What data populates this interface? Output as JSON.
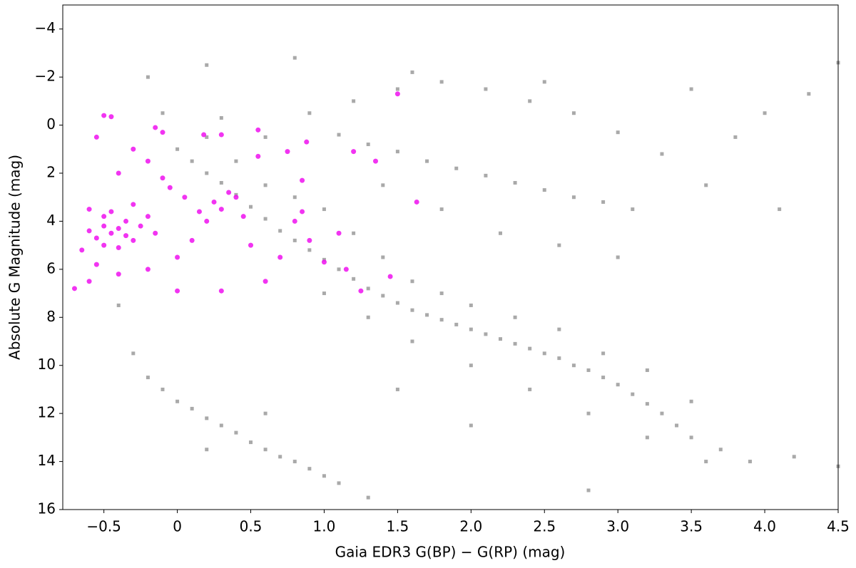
{
  "chart_data": {
    "type": "scatter",
    "xlabel": "Gaia EDR3 G(BP) − G(RP) (mag)",
    "ylabel": "Absolute G Magnitude (mag)",
    "xlim": [
      -0.78,
      4.5
    ],
    "ylim": [
      16,
      -5
    ],
    "xticks": [
      {
        "value": -0.5,
        "label": "−0.5"
      },
      0,
      0.5,
      {
        "value": 1,
        "label": "1.0"
      },
      1.5,
      {
        "value": 2,
        "label": "2.0"
      },
      2.5,
      {
        "value": 3,
        "label": "3.0"
      },
      3.5,
      {
        "value": 4,
        "label": "4.0"
      },
      4.5
    ],
    "yticks": [
      {
        "value": -4,
        "label": "−4"
      },
      {
        "value": -2,
        "label": "−2"
      },
      0,
      2,
      4,
      6,
      8,
      10,
      12,
      14,
      16
    ],
    "series": [
      {
        "color": "#a9a9a9",
        "x": [
          0.0,
          0.1,
          0.2,
          0.3,
          0.4,
          0.5,
          0.6,
          0.7,
          0.8,
          0.9,
          1.0,
          1.1,
          1.2,
          1.3,
          1.4,
          1.5,
          1.6,
          1.7,
          1.8,
          1.9,
          2.0,
          2.1,
          2.2,
          2.3,
          2.4,
          2.5,
          2.6,
          2.7,
          2.8,
          2.9,
          3.0,
          3.1,
          3.2,
          3.3,
          3.4,
          3.5,
          3.7,
          3.9,
          0.2,
          0.4,
          0.6,
          0.8,
          1.0,
          1.2,
          1.4,
          1.6,
          1.8,
          2.0,
          2.3,
          2.6,
          2.9,
          3.2,
          3.5,
          1.0,
          1.3,
          1.6,
          2.0,
          2.4,
          2.8,
          3.2,
          3.6,
          1.1,
          1.3,
          1.5,
          1.7,
          1.9,
          2.1,
          2.3,
          2.5,
          2.7,
          2.9,
          3.1,
          1.2,
          1.5,
          1.8,
          2.1,
          2.4,
          2.7,
          3.0,
          3.3,
          1.4,
          1.8,
          2.2,
          2.6,
          3.0,
          0.9,
          0.6,
          0.3,
          -0.1,
          -0.2,
          0.2,
          0.8,
          1.6,
          2.5,
          3.5,
          4.0,
          4.3,
          4.5,
          3.8,
          3.6,
          4.1,
          -0.3,
          -0.2,
          -0.1,
          0.0,
          0.1,
          0.2,
          0.3,
          0.4,
          0.5,
          0.6,
          0.7,
          0.8,
          0.9,
          1.0,
          1.1,
          1.3,
          0.2,
          0.6,
          -0.4,
          2.8,
          4.5,
          4.2,
          2.0,
          1.5
        ],
        "values": [
          1.0,
          1.5,
          2.0,
          2.4,
          2.9,
          3.4,
          3.9,
          4.4,
          4.8,
          5.2,
          5.6,
          6.0,
          6.4,
          6.8,
          7.1,
          7.4,
          7.7,
          7.9,
          8.1,
          8.3,
          8.5,
          8.7,
          8.9,
          9.1,
          9.3,
          9.5,
          9.7,
          10.0,
          10.2,
          10.5,
          10.8,
          11.2,
          11.6,
          12.0,
          12.5,
          13.0,
          13.5,
          14.0,
          0.5,
          1.5,
          2.5,
          3.0,
          3.5,
          4.5,
          5.5,
          6.5,
          7.0,
          7.5,
          8.0,
          8.5,
          9.5,
          10.2,
          11.5,
          7.0,
          8.0,
          9.0,
          10.0,
          11.0,
          12.0,
          13.0,
          14.0,
          0.4,
          0.8,
          1.1,
          1.5,
          1.8,
          2.1,
          2.4,
          2.7,
          3.0,
          3.2,
          3.5,
          -1.0,
          -1.5,
          -1.8,
          -1.5,
          -1.0,
          -0.5,
          0.3,
          1.2,
          2.5,
          3.5,
          4.5,
          5.0,
          5.5,
          -0.5,
          0.5,
          -0.3,
          -0.5,
          -2.0,
          -2.5,
          -2.8,
          -2.2,
          -1.8,
          -1.5,
          -0.5,
          -1.3,
          -2.6,
          0.5,
          2.5,
          3.5,
          9.5,
          10.5,
          11.0,
          11.5,
          11.8,
          12.2,
          12.5,
          12.8,
          13.2,
          13.5,
          13.8,
          14.0,
          14.3,
          14.6,
          14.9,
          15.5,
          13.5,
          12.0,
          7.5,
          15.2,
          14.2,
          13.8,
          12.5,
          11.0
        ]
      },
      {
        "color": "#ee11ee",
        "x": [
          -0.5,
          -0.45,
          -0.4,
          -0.55,
          -0.35,
          -0.5,
          -0.6,
          -0.3,
          -0.4,
          -0.5,
          -0.45,
          -0.35,
          -0.25,
          -0.6,
          -0.65,
          -0.2,
          -0.15,
          -0.3,
          -0.55,
          -0.7,
          -0.6,
          -0.4,
          -0.2,
          0.0,
          0.1,
          0.2,
          0.3,
          0.4,
          0.45,
          0.35,
          0.25,
          0.15,
          0.05,
          -0.05,
          -0.1,
          -0.2,
          -0.3,
          -0.4,
          -0.55,
          -0.5,
          -0.45,
          -0.15,
          -0.1,
          0.0,
          0.3,
          0.5,
          0.6,
          0.7,
          0.55,
          0.8,
          0.85,
          0.9,
          1.0,
          1.1,
          1.15,
          1.25,
          1.45,
          1.63,
          1.5,
          0.88,
          1.2,
          1.35,
          0.3,
          0.18,
          0.55,
          0.75,
          0.85
        ],
        "values": [
          4.2,
          4.5,
          4.3,
          4.7,
          4.0,
          3.8,
          4.4,
          4.8,
          5.1,
          5.0,
          3.6,
          4.6,
          4.2,
          3.5,
          5.2,
          3.8,
          4.5,
          3.3,
          5.8,
          6.8,
          6.5,
          6.2,
          6.0,
          5.5,
          4.8,
          4.0,
          3.5,
          3.0,
          3.8,
          2.8,
          3.2,
          3.6,
          3.0,
          2.6,
          2.2,
          1.5,
          1.0,
          2.0,
          0.5,
          -0.4,
          -0.35,
          0.1,
          0.3,
          6.9,
          6.9,
          5.0,
          6.5,
          5.5,
          0.2,
          4.0,
          3.6,
          4.8,
          5.7,
          4.5,
          6.0,
          6.9,
          6.3,
          3.2,
          -1.3,
          0.7,
          1.1,
          1.5,
          0.4,
          0.4,
          1.3,
          1.1,
          2.3
        ]
      }
    ]
  }
}
